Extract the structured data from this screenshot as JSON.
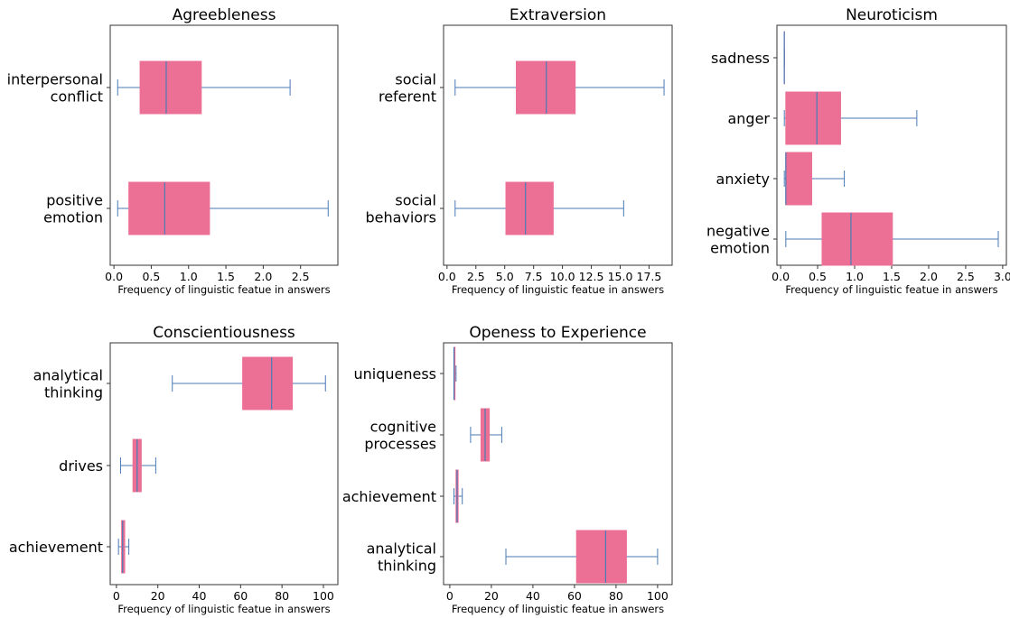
{
  "colors": {
    "box": "#ec7096",
    "line": "#4a7ab5",
    "frame": "#333333"
  },
  "chart_data": [
    {
      "type": "box",
      "title": "Agreebleness",
      "xlabel": "Frequency of linguistic featue in answers",
      "xlim": [
        -0.05,
        3.0
      ],
      "xticks": [
        0.0,
        0.5,
        1.0,
        1.5,
        2.0,
        2.5
      ],
      "xtick_labels": [
        "0.0",
        "0.5",
        "1.0",
        "1.5",
        "2.0",
        "2.5"
      ],
      "categories": [
        [
          "interpersonal",
          "conflict"
        ],
        [
          "positive",
          "emotion"
        ]
      ],
      "boxes": [
        {
          "min": 0.05,
          "q1": 0.35,
          "median": 0.7,
          "q3": 1.17,
          "max": 2.36
        },
        {
          "min": 0.05,
          "q1": 0.2,
          "median": 0.68,
          "q3": 1.28,
          "max": 2.87
        }
      ]
    },
    {
      "type": "box",
      "title": "Extraversion",
      "xlabel": "Frequency of linguistic featue in answers",
      "xlim": [
        -0.3,
        19.5
      ],
      "xticks": [
        0.0,
        2.5,
        5.0,
        7.5,
        10.0,
        12.5,
        15.0,
        17.5
      ],
      "xtick_labels": [
        "0.0",
        "2.5",
        "5.0",
        "7.5",
        "10.0",
        "12.5",
        "15.0",
        "17.5"
      ],
      "categories": [
        [
          "social",
          "referent"
        ],
        [
          "social",
          "behaviors"
        ]
      ],
      "boxes": [
        {
          "min": 0.7,
          "q1": 6.0,
          "median": 8.6,
          "q3": 11.1,
          "max": 18.8
        },
        {
          "min": 0.7,
          "q1": 5.1,
          "median": 6.8,
          "q3": 9.2,
          "max": 15.3
        }
      ]
    },
    {
      "type": "box",
      "title": "Neuroticism",
      "xlabel": "Frequency of linguistic featue in answers",
      "xlim": [
        -0.05,
        3.05
      ],
      "xticks": [
        0.0,
        0.5,
        1.0,
        1.5,
        2.0,
        2.5,
        3.0
      ],
      "xtick_labels": [
        "0.0",
        "0.5",
        "1.0",
        "1.5",
        "2.0",
        "2.5",
        "3.0"
      ],
      "categories": [
        [
          "sadness"
        ],
        [
          "anger"
        ],
        [
          "anxiety"
        ],
        [
          "negative",
          "emotion"
        ]
      ],
      "boxes": [
        {
          "min": 0.05,
          "q1": 0.05,
          "median": 0.05,
          "q3": 0.05,
          "max": 0.05
        },
        {
          "min": 0.05,
          "q1": 0.07,
          "median": 0.49,
          "q3": 0.81,
          "max": 1.84
        },
        {
          "min": 0.05,
          "q1": 0.07,
          "median": 0.07,
          "q3": 0.42,
          "max": 0.86
        },
        {
          "min": 0.07,
          "q1": 0.56,
          "median": 0.95,
          "q3": 1.51,
          "max": 2.94
        }
      ]
    },
    {
      "type": "box",
      "title": "Conscientiousness",
      "xlabel": "Frequency of linguistic featue in answers",
      "xlim": [
        -3,
        107
      ],
      "xticks": [
        0,
        20,
        40,
        60,
        80,
        100
      ],
      "xtick_labels": [
        "0",
        "20",
        "40",
        "60",
        "80",
        "100"
      ],
      "categories": [
        [
          "analytical",
          "thinking"
        ],
        [
          "drives"
        ],
        [
          "achievement"
        ]
      ],
      "boxes": [
        {
          "min": 27,
          "q1": 61,
          "median": 75,
          "q3": 85,
          "max": 101
        },
        {
          "min": 2,
          "q1": 8,
          "median": 10,
          "q3": 12,
          "max": 19
        },
        {
          "min": 1,
          "q1": 2.5,
          "median": 3,
          "q3": 4,
          "max": 6
        }
      ]
    },
    {
      "type": "box",
      "title": "Openess to Experience",
      "xlabel": "Frequency of linguistic featue in answers",
      "xlim": [
        -3,
        107
      ],
      "xticks": [
        0,
        20,
        40,
        60,
        80,
        100
      ],
      "xtick_labels": [
        "0",
        "20",
        "40",
        "60",
        "80",
        "100"
      ],
      "categories": [
        [
          "uniqueness"
        ],
        [
          "cognitive",
          "processes"
        ],
        [
          "achievement"
        ],
        [
          "analytical",
          "thinking"
        ]
      ],
      "boxes": [
        {
          "min": 2,
          "q1": 2,
          "median": 2,
          "q3": 2.5,
          "max": 3
        },
        {
          "min": 10,
          "q1": 15,
          "median": 17,
          "q3": 19,
          "max": 25
        },
        {
          "min": 2,
          "q1": 3,
          "median": 3.5,
          "q3": 4,
          "max": 6
        },
        {
          "min": 27,
          "q1": 61,
          "median": 75,
          "q3": 85,
          "max": 100
        }
      ]
    }
  ]
}
